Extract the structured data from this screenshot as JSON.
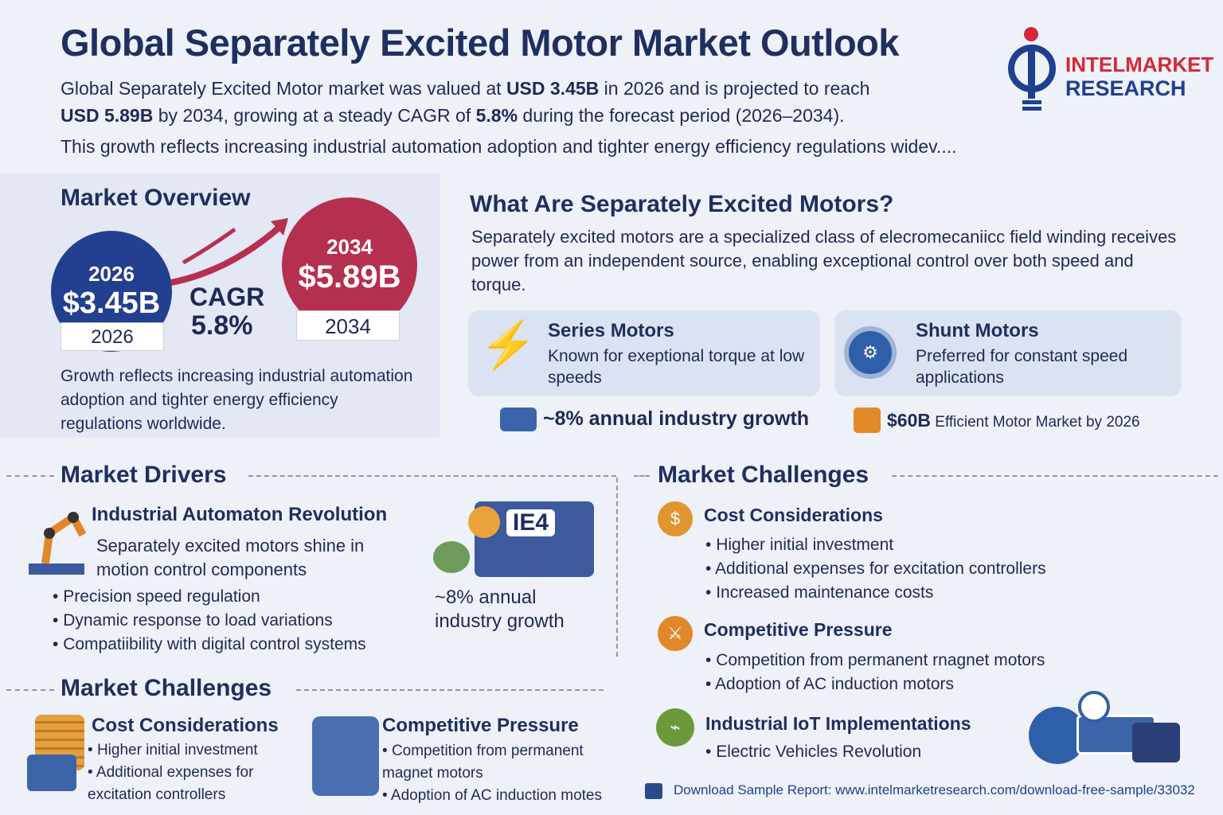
{
  "header": {
    "title": "Global Separately Excited Motor Market Outlook",
    "intro_line1_pre": "Global Separately Excited Motor market was valued at ",
    "intro_line1_b": "USD 3.45B",
    "intro_line1_post": " in 2026 and is projected to reach",
    "intro_line2_b1": "USD 5.89B",
    "intro_line2_mid": " by 2034, growing at a steady CAGR of ",
    "intro_line2_b2": "5.8%",
    "intro_line2_post": " during the forecast period (2026–2034).",
    "intro_line3": "This growth reflects increasing industrial automation adoption and tighter energy efficiency regulations widev....",
    "logo_line1": "INTELMARKET",
    "logo_line2": "RESEARCH"
  },
  "overview": {
    "title": "Market Overview",
    "start_year": "2026",
    "start_value": "$3.45B",
    "start_tag": "2026",
    "cagr_label": "CAGR",
    "cagr_value": "5.8%",
    "end_year": "2034",
    "end_value": "$5.89B",
    "end_tag": "2034",
    "note": "Growth reflects increasing industrial automation adoption and tighter energy efficiency regulations worldwide."
  },
  "what": {
    "title": "What Are Separately Excited Motors?",
    "desc": "Separately excited motors are a specialized class of elecromecaniicc  field winding receives power from an independent source, enabling exceptional control over both speed and torque.",
    "cards": [
      {
        "title": "Series Motors",
        "desc": "Known for exeptional torque at low speeds"
      },
      {
        "title": "Shunt Motors",
        "desc": "Preferred for constant speed applications"
      }
    ],
    "stat1": "~8% annual industry growth",
    "stat2_b": "$60B",
    "stat2": "Efficient Motor Market by 2026"
  },
  "drivers": {
    "title": "Market Drivers",
    "sub": "Industrial Automaton Revolution",
    "desc": "Separately excited motors shine in motion control components",
    "bullets": [
      "Precision speed regulation",
      "Dynamic response to load variations",
      "Compatiibility with digital control systems"
    ],
    "ie_label": "IE4",
    "growth": "~8% annual industry growth"
  },
  "challenges_left": {
    "title": "Market Challenges",
    "c1": {
      "title": "Cost Considerations",
      "bullets": [
        "Higher initial investment",
        "Additional expenses for excitation controllers"
      ]
    },
    "c2": {
      "title": "Competitive Pressure",
      "bullets": [
        "Competition from permanent magnet motors",
        "Adoption of AC induction motes"
      ]
    }
  },
  "challenges_right": {
    "title": "Market Challenges",
    "items": [
      {
        "title": "Cost Considerations",
        "bullets": [
          "Higher initial investment",
          "Additional expenses for excitation controllers",
          "Increased maintenance costs"
        ]
      },
      {
        "title": "Competitive Pressure",
        "bullets": [
          "Competition from permanent rnagnet motors",
          "Adoption of AC induction motors"
        ]
      },
      {
        "title": "Industrial IoT Implementations",
        "bullets": [
          "Electric Vehicles Revolution"
        ]
      }
    ]
  },
  "footer": {
    "download": "Download Sample Report: www.intelmarketresearch.com/download-free-sample/33032"
  },
  "colors": {
    "navy": "#1e2f5e",
    "blue": "#233f8f",
    "red": "#b5304f",
    "orange": "#e08a2a"
  }
}
